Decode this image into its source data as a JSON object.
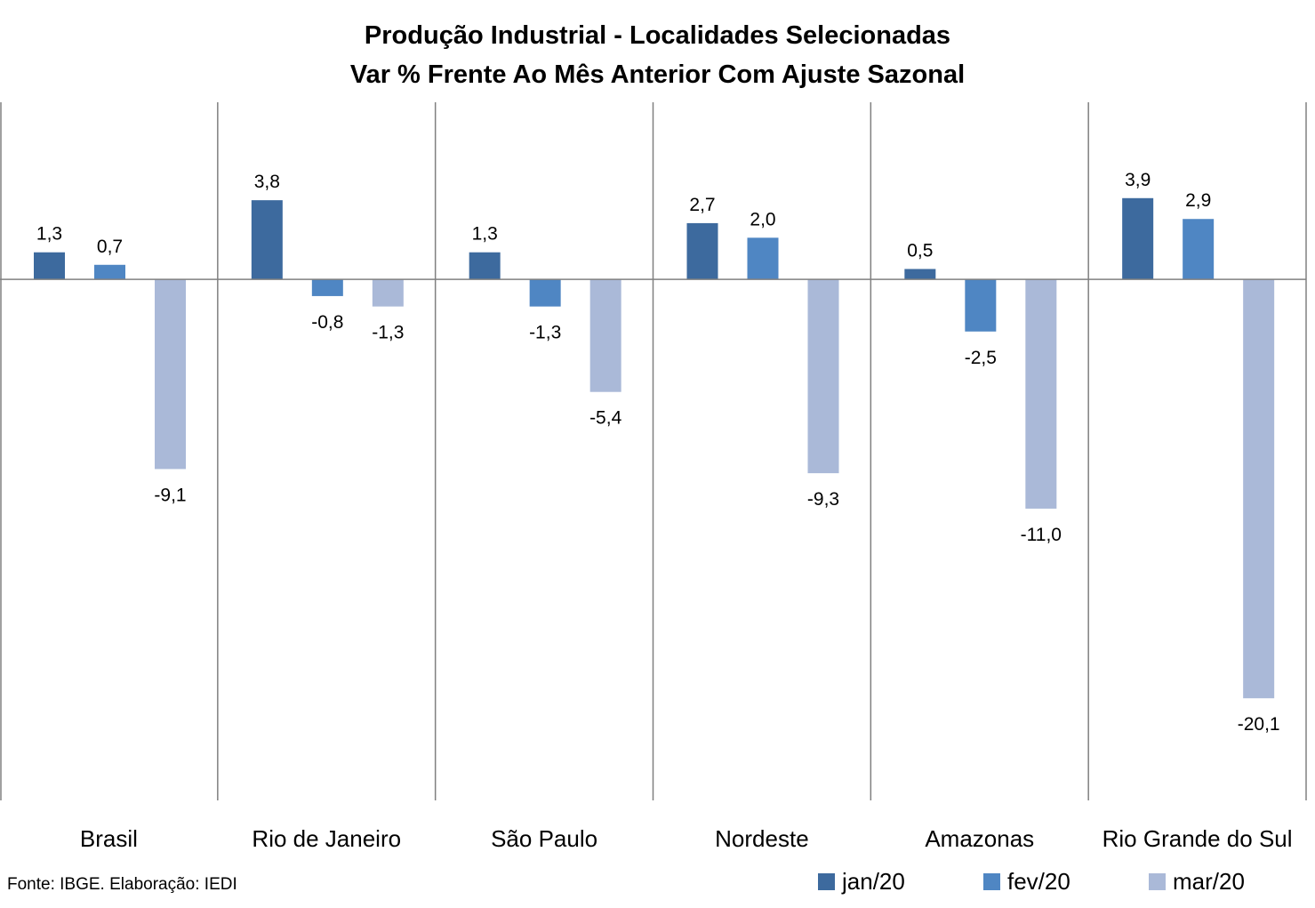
{
  "chart_data": {
    "type": "bar",
    "title": "Produção Industrial - Localidades Selecionadas",
    "subtitle": "Var % Frente Ao Mês Anterior Com Ajuste Sazonal",
    "categories": [
      "Brasil",
      "Rio de Janeiro",
      "São Paulo",
      "Nordeste",
      "Amazonas",
      "Rio Grande do Sul"
    ],
    "series": [
      {
        "name": "jan/20",
        "color": "#3d6a9e",
        "values": [
          1.3,
          3.8,
          1.3,
          2.7,
          0.5,
          3.9
        ],
        "labels": [
          "1,3",
          "3,8",
          "1,3",
          "2,7",
          "0,5",
          "3,9"
        ]
      },
      {
        "name": "fev/20",
        "color": "#4f86c3",
        "values": [
          0.7,
          -0.8,
          -1.3,
          2.0,
          -2.5,
          2.9
        ],
        "labels": [
          "0,7",
          "-0,8",
          "-1,3",
          "2,0",
          "-2,5",
          "2,9"
        ]
      },
      {
        "name": "mar/20",
        "color": "#aab9d8",
        "values": [
          -9.1,
          -1.3,
          -5.4,
          -9.3,
          -11.0,
          -20.1
        ],
        "labels": [
          "-9,1",
          "-1,3",
          "-5,4",
          "-9,3",
          "-11,0",
          "-20,1"
        ]
      }
    ],
    "ylim": [
      -25.0,
      8.5
    ],
    "grid": false,
    "legend": "bottom-right"
  },
  "source": "Fonte: IBGE. Elaboração: IEDI"
}
